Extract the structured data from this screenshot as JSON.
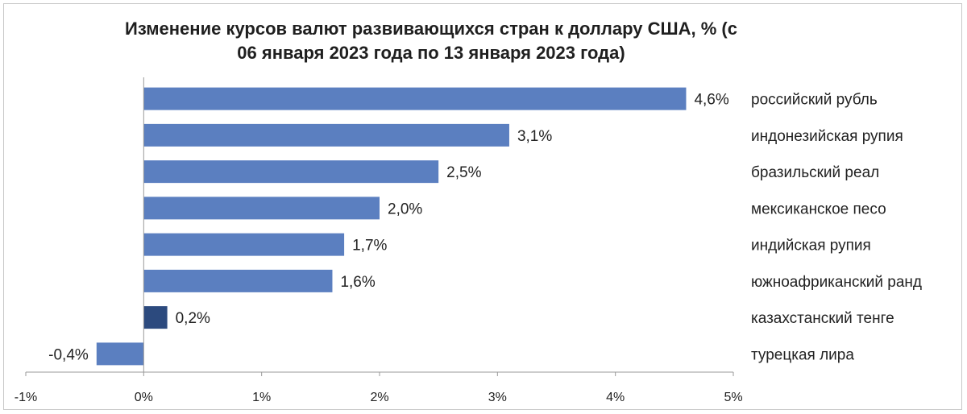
{
  "chart_data": {
    "type": "bar",
    "orientation": "horizontal",
    "title": "Изменение курсов валют развивающихся стран к доллару США, % (с 06 января 2023 года по 13 января 2023 года)",
    "categories": [
      "российский рубль",
      "индонезийская рупия",
      "бразильский реал",
      "мексиканское песо",
      "индийская рупия",
      "южноафриканский ранд",
      "казахстанский тенге",
      "турецкая лира"
    ],
    "values": [
      4.6,
      3.1,
      2.5,
      2.0,
      1.7,
      1.6,
      0.2,
      -0.4
    ],
    "data_labels": [
      "4,6%",
      "3,1%",
      "2,5%",
      "2,0%",
      "1,7%",
      "1,6%",
      "0,2%",
      "-0,4%"
    ],
    "xlim": [
      -1,
      5
    ],
    "x_ticks": [
      "-1%",
      "0%",
      "1%",
      "2%",
      "3%",
      "4%",
      "5%"
    ],
    "x_tick_values": [
      -1,
      0,
      1,
      2,
      3,
      4,
      5
    ],
    "grid": false,
    "legend": "none",
    "colors": {
      "bar": "#5b7fc0",
      "highlight_bar": "#2c4a7e",
      "highlight_index": 6
    }
  }
}
